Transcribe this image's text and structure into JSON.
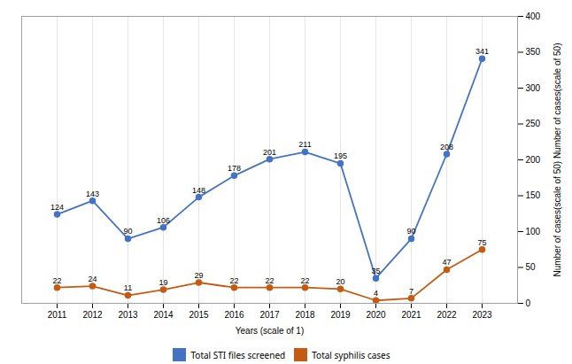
{
  "chart_data": {
    "type": "line",
    "xlabel": "Years (scale of 1)",
    "ylabel": "Number of cases(scale of 50) Number of cases(scale of 50)",
    "x": [
      2011,
      2012,
      2013,
      2014,
      2015,
      2016,
      2017,
      2018,
      2019,
      2020,
      2021,
      2022,
      2023
    ],
    "xlim": [
      2010,
      2024
    ],
    "xticks": [
      2011,
      2012,
      2013,
      2014,
      2015,
      2016,
      2017,
      2018,
      2019,
      2020,
      2021,
      2022,
      2023
    ],
    "ylim": [
      0,
      400
    ],
    "yticks": [
      0,
      50,
      100,
      150,
      200,
      250,
      300,
      350,
      400
    ],
    "series": [
      {
        "name": "Total STI files screened",
        "color": "#4472C4",
        "marker": "circle",
        "values": [
          124,
          143,
          90,
          106,
          148,
          178,
          201,
          211,
          195,
          35,
          90,
          208,
          341
        ]
      },
      {
        "name": "Total syphilis cases",
        "color": "#C55A11",
        "marker": "circle",
        "values": [
          22,
          24,
          11,
          19,
          29,
          22,
          22,
          22,
          20,
          4,
          7,
          47,
          75
        ]
      }
    ],
    "grid": "x",
    "data_labels": true,
    "legend": "bottom"
  }
}
